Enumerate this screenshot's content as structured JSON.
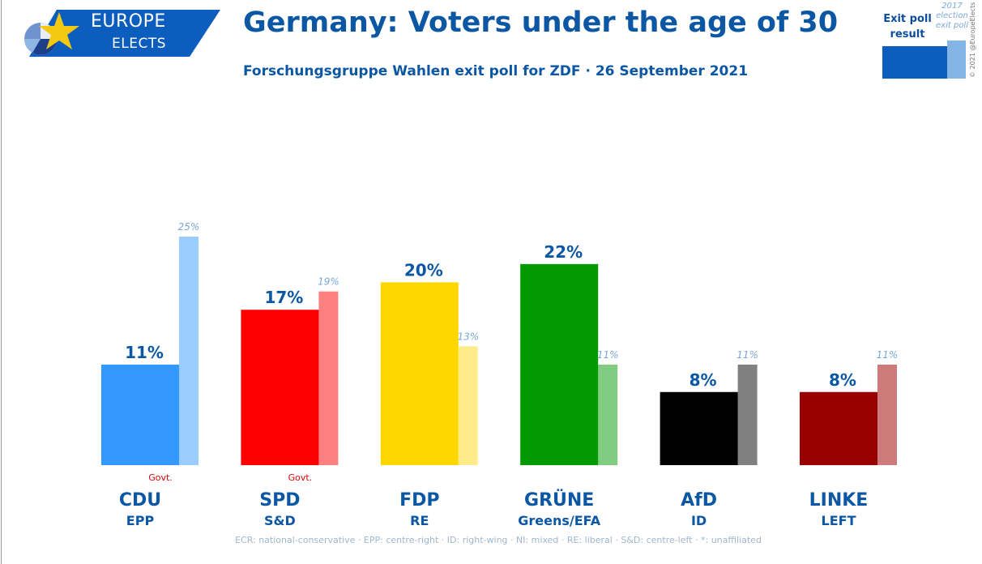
{
  "brand": {
    "name_line1": "EUROPE",
    "name_line2": "ELECTS",
    "banner_color": "#0b5ebd",
    "star_color": "#f2c811"
  },
  "title": "Germany: Voters under the age of 30",
  "subtitle": "Forschungsgruppe Wahlen exit poll for ZDF · 26 September 2021",
  "legend": {
    "exit_label": "Exit poll result",
    "prev_label_line1": "2017",
    "prev_label_line2": "election",
    "prev_label_line3": "exit poll"
  },
  "copyright": "© 2021 @EuropeElects",
  "footer": "ECR: national-conservative · EPP: centre-right · ID: right-wing · NI: mixed · RE: liberal · S&D: centre-left · *: unaffiliated",
  "chart_data": {
    "type": "bar",
    "title": "Germany: Voters under the age of 30",
    "categories": [
      "CDU",
      "SPD",
      "FDP",
      "GRÜNE",
      "AfD",
      "LINKE"
    ],
    "groups": [
      "EPP",
      "S&D",
      "RE",
      "Greens/EFA",
      "ID",
      "LEFT"
    ],
    "govt": [
      true,
      true,
      false,
      false,
      false,
      false
    ],
    "govt_label": "Govt.",
    "colors": [
      "#3399ff",
      "#ff0000",
      "#ffd700",
      "#009900",
      "#000000",
      "#990000"
    ],
    "prev_colors": [
      "#99ccff",
      "#ff8080",
      "#ffeb8a",
      "#80cc80",
      "#808080",
      "#cc7a7a"
    ],
    "series": [
      {
        "name": "Exit poll result",
        "values": [
          11,
          17,
          20,
          22,
          8,
          8
        ]
      },
      {
        "name": "2017 election exit poll",
        "values": [
          25,
          19,
          13,
          11,
          11,
          11
        ]
      }
    ],
    "value_suffix": "%",
    "ylim": [
      0,
      25
    ],
    "grid": false
  }
}
